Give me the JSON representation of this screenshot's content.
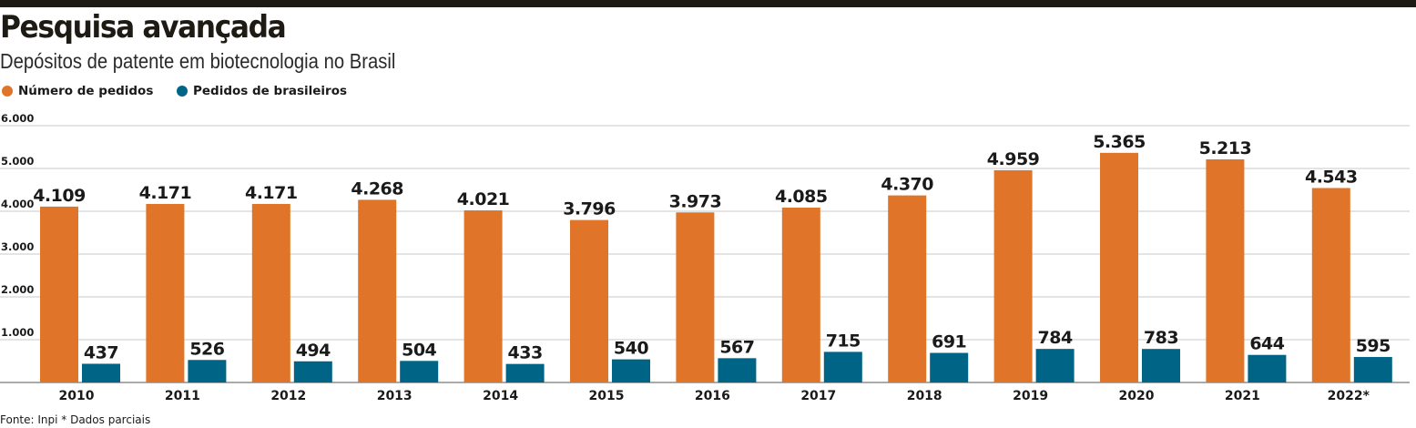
{
  "title": "Pesquisa avançada",
  "subtitle": "Depósitos de patente em biotecnologia no Brasil",
  "source": "Fonte: Inpi * Dados parciais",
  "colors": {
    "orange": "#e07428",
    "blue": "#006486",
    "grid": "#c8c8c8",
    "topbar": "#1e1a14"
  },
  "chart_data": {
    "type": "bar",
    "title": "Pesquisa avançada",
    "subtitle": "Depósitos de patente em biotecnologia no Brasil",
    "categories": [
      "2010",
      "2011",
      "2012",
      "2013",
      "2014",
      "2015",
      "2016",
      "2017",
      "2018",
      "2019",
      "2020",
      "2021",
      "2022*"
    ],
    "series": [
      {
        "name": "Número de pedidos",
        "color": "#e07428",
        "values": [
          4109,
          4171,
          4171,
          4268,
          4021,
          3796,
          3973,
          4085,
          4370,
          4959,
          5365,
          5213,
          4543
        ],
        "labels": [
          "4.109",
          "4.171",
          "4.171",
          "4.268",
          "4.021",
          "3.796",
          "3.973",
          "4.085",
          "4.370",
          "4.959",
          "5.365",
          "5.213",
          "4.543"
        ]
      },
      {
        "name": "Pedidos de brasileiros",
        "color": "#006486",
        "values": [
          437,
          526,
          494,
          504,
          433,
          540,
          567,
          715,
          691,
          784,
          783,
          644,
          595
        ],
        "labels": [
          "437",
          "526",
          "494",
          "504",
          "433",
          "540",
          "567",
          "715",
          "691",
          "784",
          "783",
          "644",
          "595"
        ]
      }
    ],
    "yticks": [
      1000,
      2000,
      3000,
      4000,
      5000,
      6000
    ],
    "ytick_labels": [
      "1.000",
      "2.000",
      "3.000",
      "4.000",
      "5.000",
      "6.000"
    ],
    "ylim": [
      0,
      6000
    ],
    "grid": true,
    "legend_position": "top-left"
  }
}
